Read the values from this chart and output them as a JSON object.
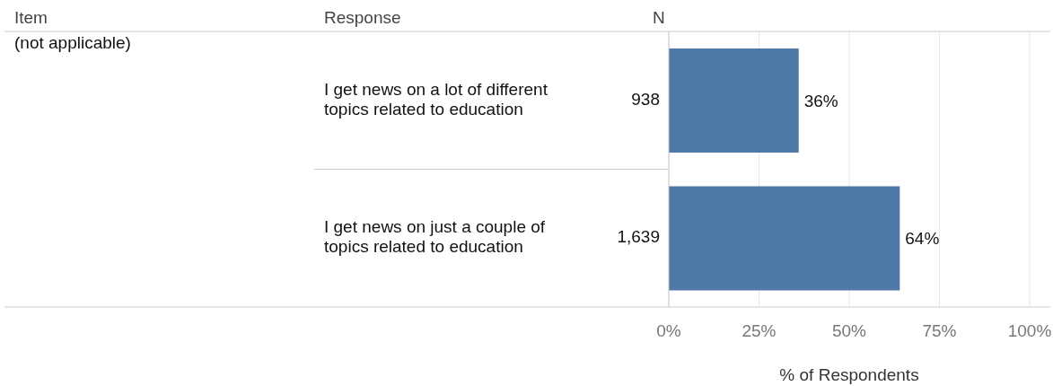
{
  "chart_data": {
    "type": "bar",
    "orientation": "horizontal",
    "ylabel": "Response",
    "xlabel": "% of Respondents",
    "categories": [
      "I get news on a lot of different topics related to education",
      "I get news on just a couple of topics related to education"
    ],
    "values": [
      36,
      64
    ],
    "value_labels": [
      "36%",
      "64%"
    ],
    "color": "#4e79a7",
    "xlim": [
      0,
      100
    ],
    "xticks": [
      {
        "value": 0,
        "label": "0%"
      },
      {
        "value": 25,
        "label": "25%"
      },
      {
        "value": 50,
        "label": "50%"
      },
      {
        "value": 75,
        "label": "75%"
      },
      {
        "value": 100,
        "label": "100%"
      }
    ],
    "grid": "x",
    "annotations": [
      "Item",
      "(not applicable)",
      "N",
      "938",
      "1,639"
    ]
  }
}
